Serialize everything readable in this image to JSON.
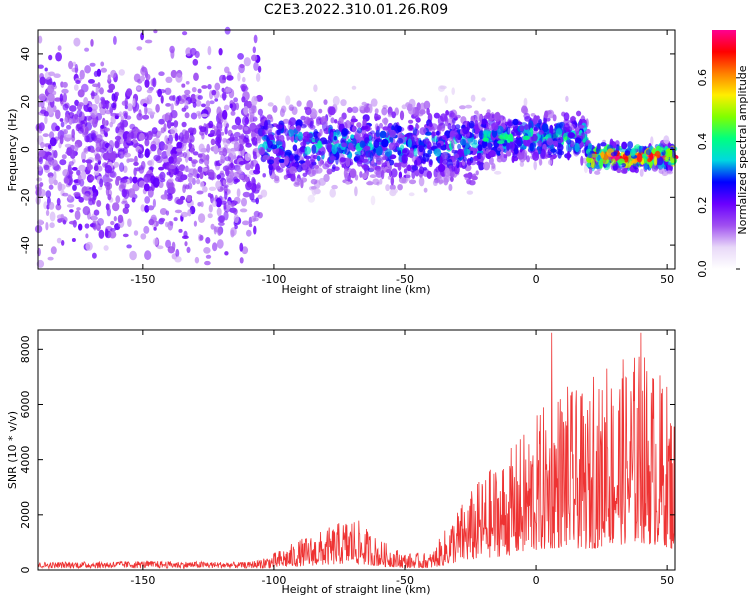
{
  "title": "C2E3.2022.310.01.26.R09",
  "colors": {
    "signal": "#ee3333",
    "colormap": [
      "#ffffff",
      "#e8d8f8",
      "#a050f0",
      "#6a00ff",
      "#0000ff",
      "#00d8e0",
      "#00ff80",
      "#80ff00",
      "#ffee00",
      "#ff8000",
      "#ff0000",
      "#ff0090"
    ]
  },
  "chart_data": [
    {
      "type": "heatmap",
      "xlabel": "Height of straight line (km)",
      "ylabel": "Frequency (Hz)",
      "xlim": [
        -190,
        53
      ],
      "ylim": [
        -50,
        50
      ],
      "xticks": [
        -150,
        -100,
        -50,
        0,
        50
      ],
      "yticks": [
        -40,
        -20,
        0,
        20,
        40
      ],
      "colorbar": {
        "label": "Normalized spectral amplitude",
        "range": [
          0,
          0.75
        ],
        "ticks": [
          "0.0",
          "0.2",
          "0.4",
          "0.6"
        ]
      },
      "bands": [
        {
          "x": [
            -190,
            -105
          ],
          "freq_center": 0,
          "freq_halfwidth": 50,
          "peak_amplitude": 0.15
        },
        {
          "x": [
            -105,
            -20
          ],
          "freq_center": 2,
          "freq_halfwidth": 22,
          "peak_amplitude": 0.3
        },
        {
          "x": [
            -20,
            20
          ],
          "freq_center": 5,
          "freq_halfwidth": 14,
          "peak_amplitude": 0.35
        },
        {
          "x": [
            20,
            53
          ],
          "freq_center": -3,
          "freq_halfwidth": 7,
          "peak_amplitude": 0.7
        }
      ],
      "grid": false
    },
    {
      "type": "line",
      "xlabel": "Height of straight line (km)",
      "ylabel": "SNR (10 * v/v)",
      "xlim": [
        -190,
        53
      ],
      "ylim": [
        0,
        8700
      ],
      "xticks": [
        -150,
        -100,
        -50,
        0,
        50
      ],
      "yticks": [
        0,
        2000,
        4000,
        6000,
        8000
      ],
      "envelope": {
        "x": [
          -190,
          -150,
          -110,
          -100,
          -90,
          -80,
          -70,
          -60,
          -50,
          -40,
          -30,
          -20,
          -10,
          0,
          10,
          20,
          30,
          40,
          50,
          53
        ],
        "y": [
          250,
          300,
          250,
          500,
          900,
          1200,
          1600,
          900,
          500,
          500,
          1800,
          2800,
          3500,
          4500,
          5500,
          5000,
          6000,
          6500,
          5500,
          4500
        ]
      },
      "spikes": [
        {
          "x": 6,
          "y": 8600
        },
        {
          "x": 40,
          "y": 8600
        },
        {
          "x": 27,
          "y": 7300
        },
        {
          "x": 22,
          "y": 7000
        }
      ],
      "grid": false
    }
  ]
}
